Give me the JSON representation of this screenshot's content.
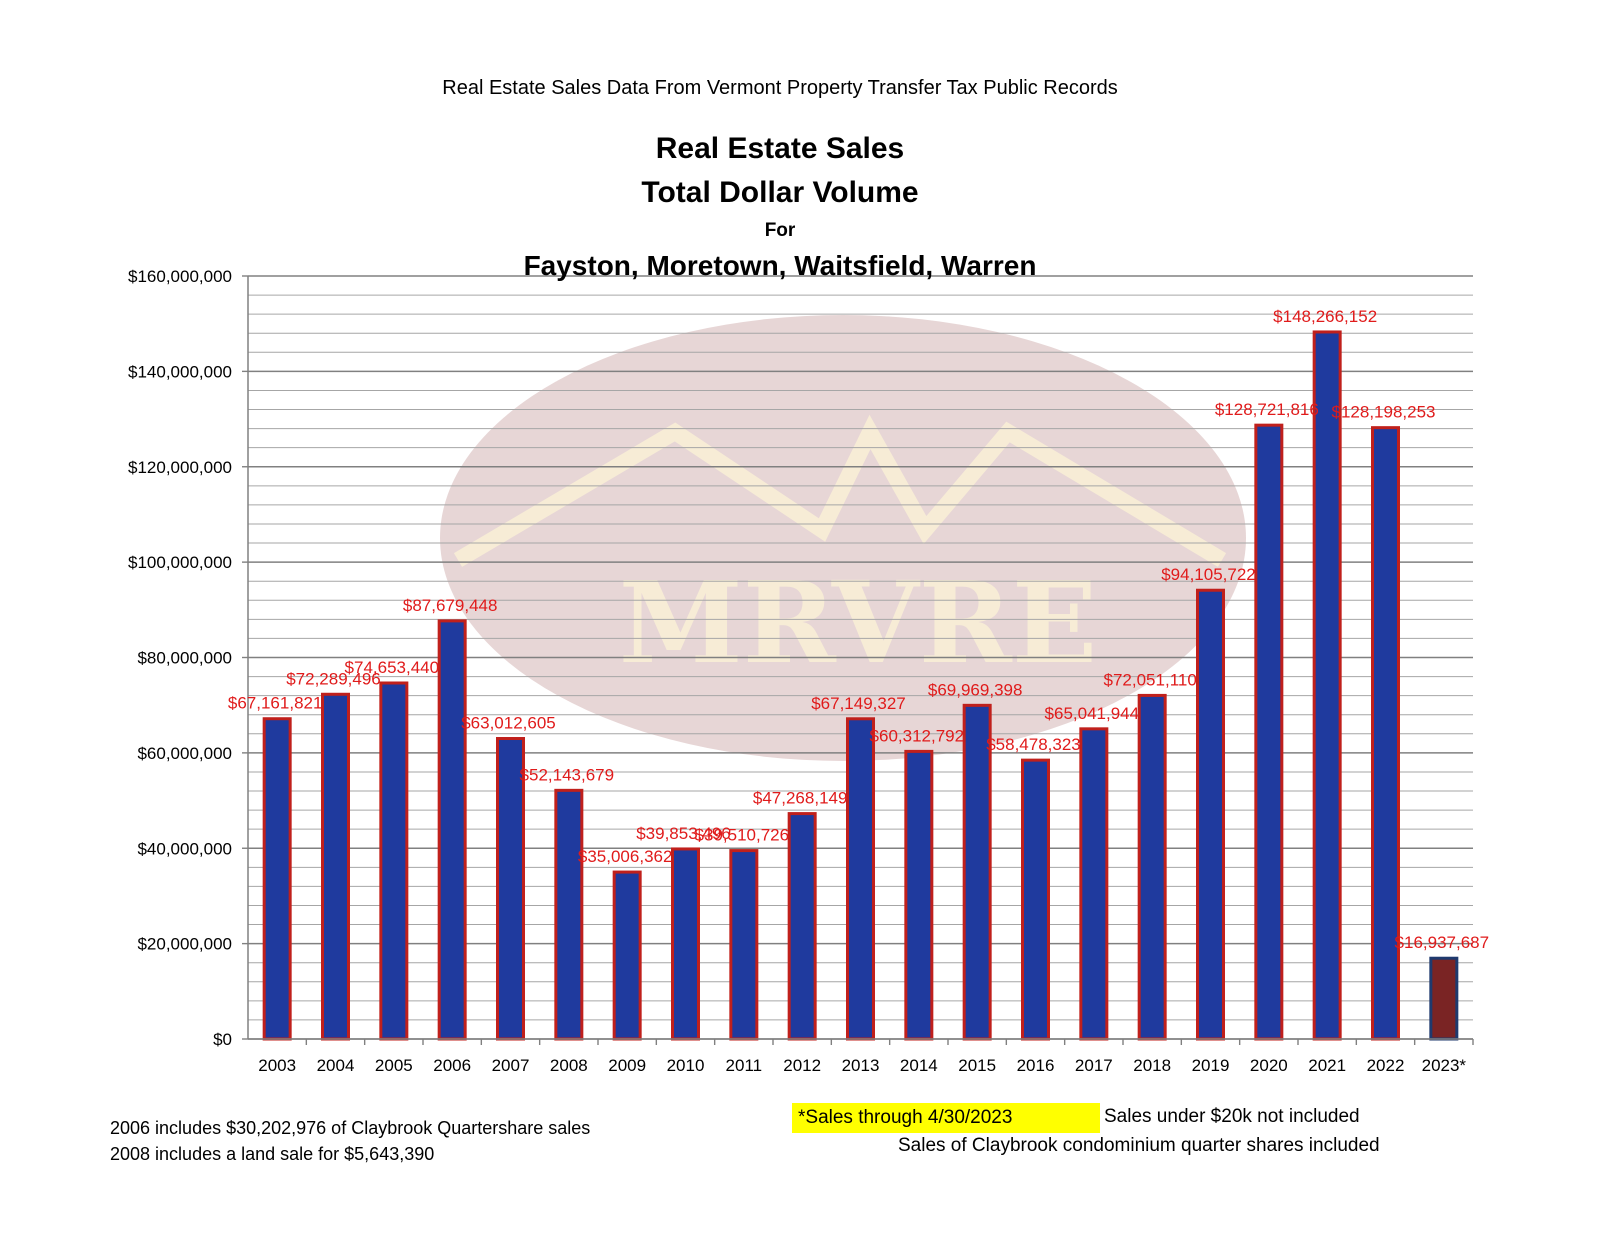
{
  "header": {
    "source_line": "Real Estate Sales Data From Vermont Property Transfer Tax Public Records",
    "title_line1": "Real Estate Sales",
    "title_line2": "Total Dollar Volume",
    "title_line3": "For",
    "title_line4": "Fayston, Moretown, Waitsfield, Warren"
  },
  "watermark": {
    "text": "MRVRE"
  },
  "notes": {
    "left_line1": "2006 includes $30,202,976 of Claybrook Quartershare sales",
    "left_line2": "2008 includes a land sale for $5,643,390",
    "highlight": "*Sales through 4/30/2023",
    "right_line1": "Sales under $20k not included",
    "right_line2": "Sales of Claybrook condominium quarter shares included"
  },
  "colors": {
    "bar_fill": "#1f3a9e",
    "bar_border": "#c0201c",
    "partial_bar_fill": "#7a2424",
    "partial_bar_border": "#1f3a6e",
    "label": "#e01b1b",
    "grid": "#a6a6a6",
    "watermark_oval": "#e3cfcf",
    "watermark_text": "#f7ecd6"
  },
  "chart_data": {
    "type": "bar",
    "categories": [
      "2003",
      "2004",
      "2005",
      "2006",
      "2007",
      "2008",
      "2009",
      "2010",
      "2011",
      "2012",
      "2013",
      "2014",
      "2015",
      "2016",
      "2017",
      "2018",
      "2019",
      "2020",
      "2021",
      "2022",
      "2023*"
    ],
    "values": [
      67161821,
      72289496,
      74653440,
      87679448,
      63012605,
      52143679,
      35006362,
      39853496,
      39510726,
      47268149,
      67149327,
      60312792,
      69969398,
      58478323,
      65041944,
      72051110,
      94105722,
      128721816,
      148266152,
      128198253,
      16937687
    ],
    "data_labels": [
      "$67,161,821",
      "$72,289,496",
      "$74,653,440",
      "$87,679,448",
      "$63,012,605",
      "$52,143,679",
      "$35,006,362",
      "$39,853,496",
      "$39,510,726",
      "$47,268,149",
      "$67,149,327",
      "$60,312,792",
      "$69,969,398",
      "$58,478,323",
      "$65,041,944",
      "$72,051,110",
      "$94,105,722",
      "$128,721,816",
      "$148,266,152",
      "$128,198,253",
      "$16,937,687"
    ],
    "y_ticks": [
      "$0",
      "$20,000,000",
      "$40,000,000",
      "$60,000,000",
      "$80,000,000",
      "$100,000,000",
      "$120,000,000",
      "$140,000,000",
      "$160,000,000"
    ],
    "ylim": [
      0,
      160000000
    ],
    "xlabel": "",
    "ylabel": "",
    "grid": true,
    "minor_grid_step": 4000000,
    "major_grid_step": 20000000
  }
}
